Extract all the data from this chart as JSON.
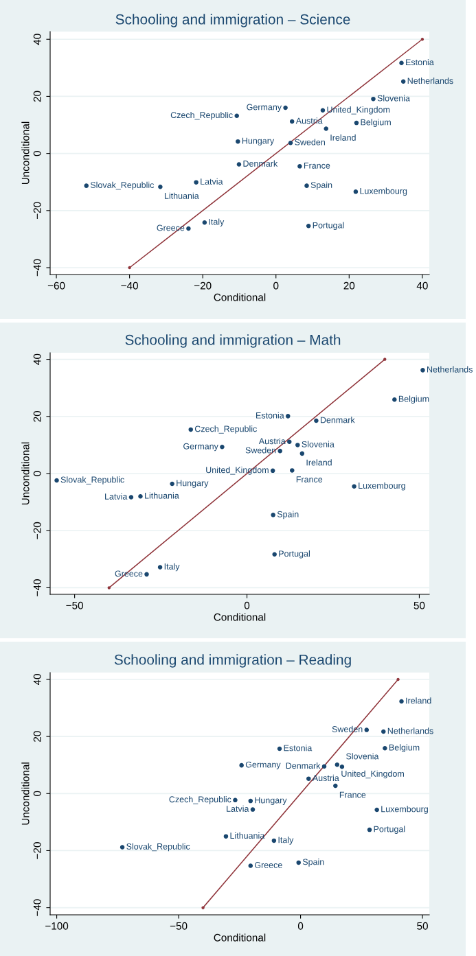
{
  "chart_data": [
    {
      "type": "scatter",
      "title": "Schooling and immigration – Science",
      "xlabel": "Conditional",
      "ylabel": "Unconditional",
      "xlim": [
        -61.7,
        41.9
      ],
      "xticks": [
        -60,
        -40,
        -20,
        0,
        20,
        40
      ],
      "ylim": [
        -42.4,
        42.7
      ],
      "yticks": [
        -40,
        -20,
        0,
        20,
        40
      ],
      "grid": "y",
      "marker": "circle",
      "series": [
        {
          "color": "#1a476f",
          "x": [
            34.3,
            34.8,
            26.6,
            2.6,
            12.8,
            -10.7,
            4.4,
            22.0,
            13.7,
            -10.4,
            4.0,
            -10.1,
            6.5,
            -51.8,
            -31.6,
            -21.8,
            8.4,
            21.8,
            -19.5,
            -23.9,
            8.9
          ],
          "values": [
            31.7,
            25.2,
            19.1,
            16.0,
            15.1,
            13.2,
            11.2,
            10.7,
            8.7,
            4.2,
            3.7,
            -3.8,
            -4.5,
            -11.3,
            -11.7,
            -10.1,
            -11.3,
            -13.4,
            -24.2,
            -26.3,
            -25.4
          ]
        },
        {
          "type": "line",
          "color": "#90353b",
          "x": [
            -40,
            40
          ],
          "values": [
            -40,
            40
          ]
        }
      ],
      "annotations": [
        {
          "text": "Estonia",
          "x": 34.3,
          "y": 31.7
        },
        {
          "text": "Netherlands",
          "x": 34.8,
          "y": 25.2
        },
        {
          "text": "Slovenia",
          "x": 26.6,
          "y": 19.1
        },
        {
          "text": "Germany",
          "x": 2.6,
          "y": 16.0
        },
        {
          "text": "United_Kingdom",
          "x": 12.8,
          "y": 15.1
        },
        {
          "text": "Czech_Republic",
          "x": -10.7,
          "y": 13.2
        },
        {
          "text": "Austria",
          "x": 4.4,
          "y": 11.2
        },
        {
          "text": "Belgium",
          "x": 22.0,
          "y": 10.7
        },
        {
          "text": "Ireland",
          "x": 13.7,
          "y": 8.7
        },
        {
          "text": "Hungary",
          "x": -10.4,
          "y": 4.2
        },
        {
          "text": "Sweden",
          "x": 4.0,
          "y": 3.7
        },
        {
          "text": "Denmark",
          "x": -10.1,
          "y": -3.8
        },
        {
          "text": "France",
          "x": 6.5,
          "y": -4.5
        },
        {
          "text": "Slovak_Republic",
          "x": -51.8,
          "y": -11.3
        },
        {
          "text": "Lithuania",
          "x": -31.6,
          "y": -11.7
        },
        {
          "text": "Latvia",
          "x": -21.8,
          "y": -10.1
        },
        {
          "text": "Spain",
          "x": 8.4,
          "y": -11.3
        },
        {
          "text": "Luxembourg",
          "x": 21.8,
          "y": -13.4
        },
        {
          "text": "Italy",
          "x": -19.5,
          "y": -24.2
        },
        {
          "text": "Greece",
          "x": -23.9,
          "y": -26.3
        },
        {
          "text": "Portugal",
          "x": 8.9,
          "y": -25.4
        }
      ]
    },
    {
      "type": "scatter",
      "title": "Schooling and immigration – Math",
      "xlabel": "Conditional",
      "ylabel": "Unconditional",
      "xlim": [
        -57.1,
        52.9
      ],
      "xticks": [
        -50,
        0,
        50
      ],
      "ylim": [
        -42.3,
        42.3
      ],
      "yticks": [
        -40,
        -20,
        0,
        20,
        40
      ],
      "grid": "y",
      "marker": "circle",
      "series": [
        {
          "color": "#1a476f",
          "x": [
            51.0,
            42.8,
            11.9,
            20.1,
            -16.3,
            12.3,
            14.7,
            -7.2,
            9.6,
            16.0,
            7.5,
            13.1,
            -55.2,
            -21.7,
            -33.6,
            -30.9,
            31.1,
            7.6,
            8.0,
            -25.2,
            -29.1
          ],
          "values": [
            36.2,
            25.9,
            20.1,
            18.5,
            15.4,
            11.1,
            10.0,
            9.3,
            7.9,
            7.0,
            1.0,
            1.1,
            -2.4,
            -3.6,
            -8.3,
            -8.0,
            -4.5,
            -14.5,
            -28.3,
            -32.8,
            -35.3
          ]
        },
        {
          "type": "line",
          "color": "#90353b",
          "x": [
            -40,
            40
          ],
          "values": [
            -40,
            40
          ]
        }
      ],
      "annotations": [
        {
          "text": "Netherlands",
          "x": 51.0,
          "y": 36.2
        },
        {
          "text": "Belgium",
          "x": 42.8,
          "y": 25.9
        },
        {
          "text": "Estonia",
          "x": 11.9,
          "y": 20.1
        },
        {
          "text": "Denmark",
          "x": 20.1,
          "y": 18.5
        },
        {
          "text": "Czech_Republic",
          "x": -16.3,
          "y": 15.4
        },
        {
          "text": "Austria",
          "x": 12.3,
          "y": 11.1
        },
        {
          "text": "Slovenia",
          "x": 14.7,
          "y": 10.0
        },
        {
          "text": "Germany",
          "x": -7.2,
          "y": 9.3
        },
        {
          "text": "Sweden",
          "x": 9.6,
          "y": 7.9
        },
        {
          "text": "Ireland",
          "x": 16.0,
          "y": 7.0
        },
        {
          "text": "United_Kingdom",
          "x": 7.5,
          "y": 1.0
        },
        {
          "text": "France",
          "x": 13.1,
          "y": 1.1
        },
        {
          "text": "Slovak_Republic",
          "x": -55.2,
          "y": -2.4
        },
        {
          "text": "Hungary",
          "x": -21.7,
          "y": -3.6
        },
        {
          "text": "Latvia",
          "x": -33.6,
          "y": -8.3
        },
        {
          "text": "Lithuania",
          "x": -30.9,
          "y": -8.0
        },
        {
          "text": "Luxembourg",
          "x": 31.1,
          "y": -4.5
        },
        {
          "text": "Spain",
          "x": 7.6,
          "y": -14.5
        },
        {
          "text": "Portugal",
          "x": 8.0,
          "y": -28.3
        },
        {
          "text": "Italy",
          "x": -25.2,
          "y": -32.8
        },
        {
          "text": "Greece",
          "x": -29.1,
          "y": -35.3
        }
      ]
    },
    {
      "type": "scatter",
      "title": "Schooling and immigration – Reading",
      "xlabel": "Conditional",
      "ylabel": "Unconditional",
      "xlim": [
        -102.7,
        52.8
      ],
      "xticks": [
        -100,
        -50,
        0,
        50
      ],
      "ylim": [
        -42.5,
        42.4
      ],
      "yticks": [
        -40,
        -20,
        0,
        20,
        40
      ],
      "grid": "y",
      "marker": "circle",
      "series": [
        {
          "color": "#1a476f",
          "x": [
            41.4,
            27.1,
            34.0,
            34.6,
            -8.6,
            -24.2,
            15.0,
            9.7,
            17.0,
            3.3,
            14.3,
            -26.8,
            -20.5,
            -19.6,
            31.3,
            28.3,
            -30.6,
            -10.9,
            -73.1,
            -20.5,
            -0.8
          ],
          "values": [
            32.3,
            22.3,
            21.7,
            15.9,
            15.7,
            9.9,
            10.1,
            9.5,
            9.4,
            5.2,
            2.7,
            -2.3,
            -2.6,
            -5.6,
            -5.7,
            -12.7,
            -15.0,
            -16.5,
            -18.8,
            -25.3,
            -24.2
          ]
        },
        {
          "type": "line",
          "color": "#90353b",
          "x": [
            -40,
            40
          ],
          "values": [
            -40,
            40
          ]
        }
      ],
      "annotations": [
        {
          "text": "Ireland",
          "x": 41.4,
          "y": 32.3
        },
        {
          "text": "Sweden",
          "x": 27.1,
          "y": 22.3
        },
        {
          "text": "Netherlands",
          "x": 34.0,
          "y": 21.7
        },
        {
          "text": "Belgium",
          "x": 34.6,
          "y": 15.9
        },
        {
          "text": "Estonia",
          "x": -8.6,
          "y": 15.7
        },
        {
          "text": "Germany",
          "x": -24.2,
          "y": 9.9
        },
        {
          "text": "United_Kingdom",
          "x": 15.0,
          "y": 10.1
        },
        {
          "text": "Denmark",
          "x": 9.7,
          "y": 9.5
        },
        {
          "text": "Slovenia",
          "x": 17.0,
          "y": 9.4
        },
        {
          "text": "Austria",
          "x": 3.3,
          "y": 5.2
        },
        {
          "text": "France",
          "x": 14.3,
          "y": 2.7
        },
        {
          "text": "Czech_Republic",
          "x": -26.8,
          "y": -2.3
        },
        {
          "text": "Hungary",
          "x": -20.5,
          "y": -2.6
        },
        {
          "text": "Latvia",
          "x": -19.6,
          "y": -5.6
        },
        {
          "text": "Luxembourg",
          "x": 31.3,
          "y": -5.7
        },
        {
          "text": "Portugal",
          "x": 28.3,
          "y": -12.7
        },
        {
          "text": "Lithuania",
          "x": -30.6,
          "y": -15.0
        },
        {
          "text": "Italy",
          "x": -10.9,
          "y": -16.5
        },
        {
          "text": "Slovak_Republic",
          "x": -73.1,
          "y": -18.8
        },
        {
          "text": "Greece",
          "x": -20.5,
          "y": -25.3
        },
        {
          "text": "Spain",
          "x": -0.8,
          "y": -24.2
        }
      ]
    }
  ]
}
